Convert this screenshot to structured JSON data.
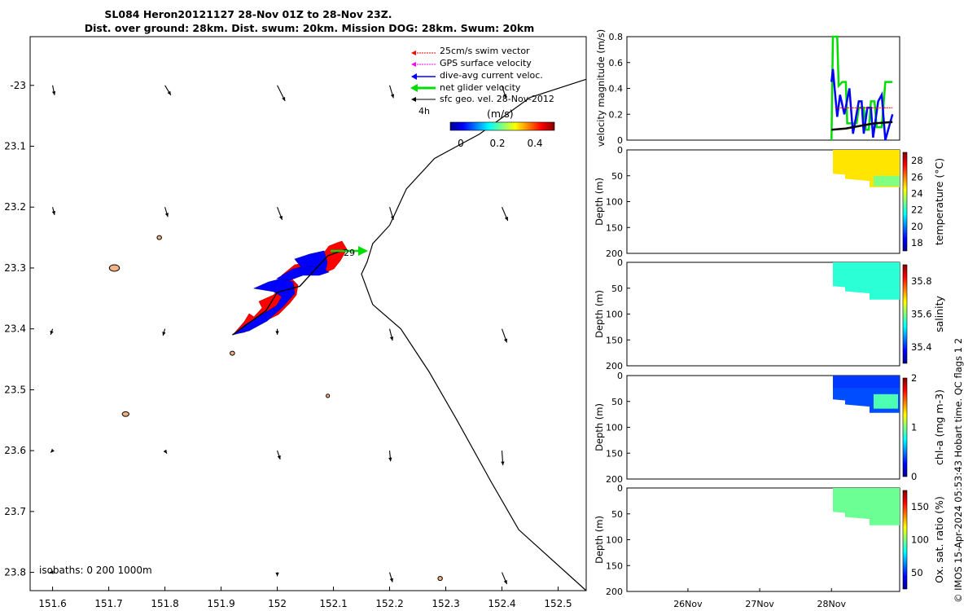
{
  "title_line1": "SL084 Heron20121127 28-Nov 01Z to 28-Nov 23Z.",
  "title_line2": "Dist. over ground: 28km. Dist. swum: 20km. Mission DOG: 28km. Swum: 20km",
  "credit": "© IMOS 15-Apr-2024 05:53:43 Hobart time. QC flags 1  2",
  "colors": {
    "swim": "#ff0000",
    "gps": "#ff00ff",
    "dive_avg": "#0000ff",
    "net": "#00dd00",
    "sfc": "#000000",
    "island": "#f4b183"
  },
  "chart_data": [
    {
      "type": "map",
      "name": "track-map",
      "x_ticks": [
        "151.6",
        "151.7",
        "151.8",
        "151.9",
        "152",
        "152.1",
        "152.2",
        "152.3",
        "152.4",
        "152.5"
      ],
      "y_ticks": [
        "-23",
        "23.1",
        "23.2",
        "23.3",
        "23.4",
        "23.5",
        "23.6",
        "23.7",
        "23.8"
      ],
      "xlim": [
        151.56,
        152.55
      ],
      "ylim": [
        -23.83,
        -22.92
      ],
      "legend": {
        "placement": "top-right",
        "entries": [
          "25cm/s swim vector",
          "GPS surface velocity",
          "dive-avg current veloc.",
          "net glider velocity",
          "sfc geo. vel. 28-Nov-2012"
        ],
        "time_label": "4h",
        "colorbar_title": "(m/s)",
        "colorbar_ticks": [
          "0",
          "0.2",
          "0.4"
        ]
      },
      "isobaths_label": "isobaths: 0   200  1000m",
      "end_label": "29",
      "current_arrows": [
        {
          "lon": 151.6,
          "lat": -23.0,
          "u": 0.02,
          "v": -0.1
        },
        {
          "lon": 151.8,
          "lat": -23.0,
          "u": 0.06,
          "v": -0.1
        },
        {
          "lon": 152.0,
          "lat": -23.0,
          "u": 0.08,
          "v": -0.16
        },
        {
          "lon": 152.2,
          "lat": -23.0,
          "u": 0.04,
          "v": -0.13
        },
        {
          "lon": 152.4,
          "lat": -23.0,
          "u": 0.04,
          "v": -0.13
        },
        {
          "lon": 151.6,
          "lat": -23.2,
          "u": 0.02,
          "v": -0.08
        },
        {
          "lon": 151.8,
          "lat": -23.2,
          "u": 0.03,
          "v": -0.1
        },
        {
          "lon": 152.0,
          "lat": -23.2,
          "u": 0.05,
          "v": -0.13
        },
        {
          "lon": 152.2,
          "lat": -23.2,
          "u": 0.04,
          "v": -0.13
        },
        {
          "lon": 152.4,
          "lat": -23.2,
          "u": 0.06,
          "v": -0.14
        },
        {
          "lon": 151.6,
          "lat": -23.4,
          "u": -0.02,
          "v": -0.06
        },
        {
          "lon": 151.8,
          "lat": -23.4,
          "u": -0.02,
          "v": -0.07
        },
        {
          "lon": 152.0,
          "lat": -23.4,
          "u": 0.0,
          "v": -0.06
        },
        {
          "lon": 152.2,
          "lat": -23.4,
          "u": 0.03,
          "v": -0.12
        },
        {
          "lon": 152.4,
          "lat": -23.4,
          "u": 0.05,
          "v": -0.14
        },
        {
          "lon": 151.6,
          "lat": -23.6,
          "u": -0.02,
          "v": -0.02
        },
        {
          "lon": 151.8,
          "lat": -23.6,
          "u": 0.02,
          "v": -0.03
        },
        {
          "lon": 152.0,
          "lat": -23.6,
          "u": 0.03,
          "v": -0.09
        },
        {
          "lon": 152.2,
          "lat": -23.6,
          "u": 0.01,
          "v": -0.11
        },
        {
          "lon": 152.4,
          "lat": -23.6,
          "u": 0.01,
          "v": -0.15
        },
        {
          "lon": 151.6,
          "lat": -23.8,
          "u": -0.03,
          "v": 0.0
        },
        {
          "lon": 152.0,
          "lat": -23.8,
          "u": 0.0,
          "v": -0.04
        },
        {
          "lon": 152.2,
          "lat": -23.8,
          "u": 0.03,
          "v": -0.1
        },
        {
          "lon": 152.4,
          "lat": -23.8,
          "u": 0.05,
          "v": -0.12
        }
      ],
      "isobath_line": [
        [
          152.55,
          -22.99
        ],
        [
          152.45,
          -23.02
        ],
        [
          152.36,
          -23.08
        ],
        [
          152.32,
          -23.1
        ],
        [
          152.28,
          -23.12
        ],
        [
          152.23,
          -23.17
        ],
        [
          152.2,
          -23.23
        ],
        [
          152.17,
          -23.26
        ],
        [
          152.16,
          -23.29
        ],
        [
          152.15,
          -23.31
        ],
        [
          152.17,
          -23.36
        ],
        [
          152.22,
          -23.4
        ],
        [
          152.27,
          -23.47
        ],
        [
          152.32,
          -23.55
        ],
        [
          152.38,
          -23.65
        ],
        [
          152.43,
          -23.73
        ],
        [
          152.55,
          -23.83
        ]
      ],
      "track": [
        [
          151.92,
          -23.41
        ],
        [
          151.98,
          -23.37
        ],
        [
          152.0,
          -23.34
        ],
        [
          152.04,
          -23.33
        ],
        [
          152.07,
          -23.3
        ],
        [
          152.09,
          -23.28
        ],
        [
          152.12,
          -23.27
        ]
      ],
      "islands": [
        {
          "lon": 151.71,
          "lat": -23.3,
          "w": 0.018,
          "h": 0.008
        },
        {
          "lon": 151.73,
          "lat": -23.54,
          "w": 0.012,
          "h": 0.005
        },
        {
          "lon": 151.79,
          "lat": -23.25,
          "w": 0.008,
          "h": 0.004
        },
        {
          "lon": 151.92,
          "lat": -23.44,
          "w": 0.008,
          "h": 0.004
        },
        {
          "lon": 152.09,
          "lat": -23.51,
          "w": 0.006,
          "h": 0.003
        },
        {
          "lon": 152.29,
          "lat": -23.81,
          "w": 0.008,
          "h": 0.004
        }
      ]
    },
    {
      "type": "line",
      "name": "velocity-panel",
      "ylabel": "velocity magnitude (m/s)",
      "y_ticks": [
        "0",
        "0.2",
        "0.4",
        "0.6",
        "0.8"
      ],
      "ylim": [
        0,
        0.8
      ],
      "series": [
        {
          "color": "#00dd00",
          "values": [
            [
              28.0,
              0.0
            ],
            [
              28.02,
              0.8
            ],
            [
              28.08,
              0.8
            ],
            [
              28.1,
              0.42
            ],
            [
              28.15,
              0.45
            ],
            [
              28.2,
              0.45
            ],
            [
              28.22,
              0.13
            ],
            [
              28.35,
              0.13
            ],
            [
              28.38,
              0.25
            ],
            [
              28.45,
              0.25
            ],
            [
              28.48,
              0.08
            ],
            [
              28.52,
              0.08
            ],
            [
              28.55,
              0.3
            ],
            [
              28.6,
              0.3
            ],
            [
              28.63,
              0.1
            ],
            [
              28.7,
              0.1
            ],
            [
              28.75,
              0.45
            ],
            [
              28.85,
              0.45
            ]
          ]
        },
        {
          "color": "#0000ff",
          "values": [
            [
              28.0,
              0.45
            ],
            [
              28.02,
              0.55
            ],
            [
              28.08,
              0.18
            ],
            [
              28.12,
              0.35
            ],
            [
              28.18,
              0.2
            ],
            [
              28.25,
              0.4
            ],
            [
              28.3,
              0.05
            ],
            [
              28.38,
              0.3
            ],
            [
              28.42,
              0.3
            ],
            [
              28.45,
              0.05
            ],
            [
              28.5,
              0.25
            ],
            [
              28.55,
              0.25
            ],
            [
              28.58,
              0.02
            ],
            [
              28.65,
              0.3
            ],
            [
              28.7,
              0.35
            ],
            [
              28.75,
              0.0
            ],
            [
              28.85,
              0.2
            ]
          ]
        },
        {
          "color": "#ff0000",
          "values": [
            [
              28.05,
              0.25
            ],
            [
              28.85,
              0.25
            ]
          ]
        },
        {
          "color": "#000000",
          "values": [
            [
              28.0,
              0.08
            ],
            [
              28.2,
              0.09
            ],
            [
              28.4,
              0.11
            ],
            [
              28.6,
              0.13
            ],
            [
              28.85,
              0.14
            ]
          ]
        }
      ]
    },
    {
      "type": "heatmap",
      "name": "temperature-panel",
      "ylabel": "Depth (m)",
      "colorbar_label": "temperature (°C)",
      "colorbar_ticks": [
        "18",
        "20",
        "22",
        "24",
        "26",
        "28"
      ],
      "clim": [
        17,
        29
      ],
      "y_ticks": [
        "0",
        "50",
        "100",
        "150",
        "200"
      ],
      "value": 24.8
    },
    {
      "type": "heatmap",
      "name": "salinity-panel",
      "ylabel": "Depth (m)",
      "colorbar_label": "salinity",
      "colorbar_ticks": [
        "35.4",
        "35.6",
        "35.8"
      ],
      "clim": [
        35.3,
        35.9
      ],
      "y_ticks": [
        "0",
        "50",
        "100",
        "150",
        "200"
      ],
      "value": 35.55
    },
    {
      "type": "heatmap",
      "name": "chla-panel",
      "ylabel": "Depth (m)",
      "colorbar_label": "chl-a (mg m-3)",
      "colorbar_ticks": [
        "0",
        "1",
        "2"
      ],
      "clim": [
        0,
        2
      ],
      "y_ticks": [
        "0",
        "50",
        "100",
        "150",
        "200"
      ],
      "value": 0.4
    },
    {
      "type": "heatmap",
      "name": "oxygen-panel",
      "ylabel": "Depth (m)",
      "colorbar_label": "Ox. sat. ratio (%)",
      "colorbar_ticks": [
        "50",
        "100",
        "150"
      ],
      "clim": [
        25,
        175
      ],
      "y_ticks": [
        "0",
        "50",
        "100",
        "150",
        "200"
      ],
      "x_ticks": [
        "26Nov",
        "27Nov",
        "28Nov"
      ],
      "value": 97
    }
  ]
}
